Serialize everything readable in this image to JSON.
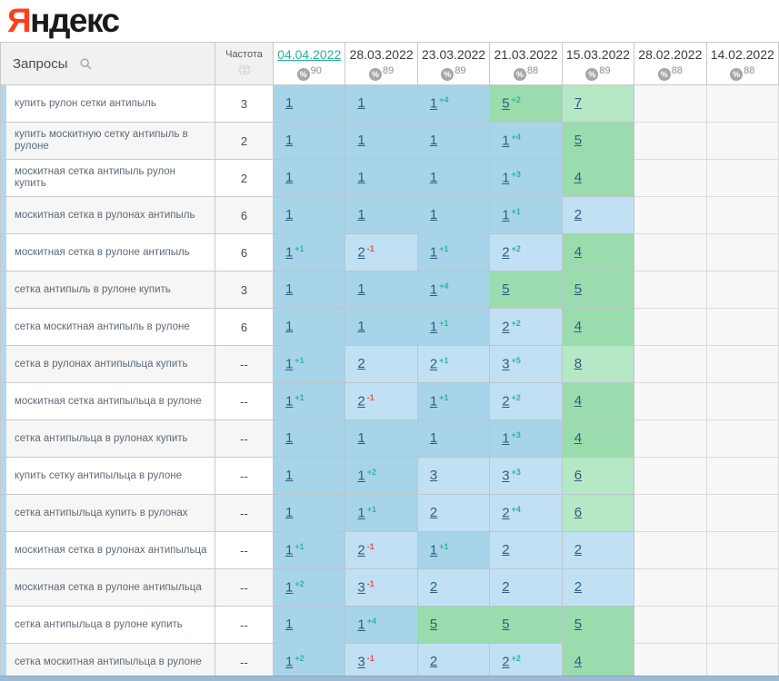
{
  "logo": {
    "first": "Я",
    "rest": "ндекс"
  },
  "header": {
    "queries_label": "Запросы",
    "frequency_label": "Частота",
    "search_icon": "magnifier",
    "frequency_icon": "globe",
    "coverage_icon": "percent-circle"
  },
  "colors": {
    "accent_selected_date": "#27b1a0",
    "delta_up": "#2ab5a0",
    "delta_down": "#e0544a",
    "pos_1_bg": "#a8d4ea",
    "pos_2_3_bg": "#c1e0f3",
    "pos_4_5_bg": "#9adcad",
    "pos_6_10_bg": "#b5e8c4",
    "row_strip": "#b3d7ee",
    "yandex_red": "#fc3f1d"
  },
  "table": {
    "date_columns": [
      {
        "date": "04.04.2022",
        "coverage": "90",
        "selected": true
      },
      {
        "date": "28.03.2022",
        "coverage": "89",
        "selected": false
      },
      {
        "date": "23.03.2022",
        "coverage": "89",
        "selected": false
      },
      {
        "date": "21.03.2022",
        "coverage": "88",
        "selected": false
      },
      {
        "date": "15.03.2022",
        "coverage": "89",
        "selected": false
      },
      {
        "date": "28.02.2022",
        "coverage": "88",
        "selected": false
      },
      {
        "date": "14.02.2022",
        "coverage": "88",
        "selected": false
      }
    ],
    "rows": [
      {
        "query": "купить рулон сетки антипыль",
        "frequency": "3",
        "positions": [
          {
            "pos": 1
          },
          {
            "pos": 1
          },
          {
            "pos": 1,
            "delta": 4
          },
          {
            "pos": 5,
            "delta": 2
          },
          {
            "pos": 7
          },
          null,
          null
        ]
      },
      {
        "query": "купить москитную сетку антипыль в рулоне",
        "frequency": "2",
        "positions": [
          {
            "pos": 1
          },
          {
            "pos": 1
          },
          {
            "pos": 1
          },
          {
            "pos": 1,
            "delta": 4
          },
          {
            "pos": 5
          },
          null,
          null
        ]
      },
      {
        "query": "москитная сетка антипыль рулон купить",
        "frequency": "2",
        "positions": [
          {
            "pos": 1
          },
          {
            "pos": 1
          },
          {
            "pos": 1
          },
          {
            "pos": 1,
            "delta": 3
          },
          {
            "pos": 4
          },
          null,
          null
        ]
      },
      {
        "query": "москитная сетка в рулонах антипыль",
        "frequency": "6",
        "positions": [
          {
            "pos": 1
          },
          {
            "pos": 1
          },
          {
            "pos": 1
          },
          {
            "pos": 1,
            "delta": 1
          },
          {
            "pos": 2
          },
          null,
          null
        ]
      },
      {
        "query": "москитная сетка в рулоне антипыль",
        "frequency": "6",
        "positions": [
          {
            "pos": 1,
            "delta": 1
          },
          {
            "pos": 2,
            "delta": -1
          },
          {
            "pos": 1,
            "delta": 1
          },
          {
            "pos": 2,
            "delta": 2
          },
          {
            "pos": 4
          },
          null,
          null
        ]
      },
      {
        "query": "сетка антипыль в рулоне купить",
        "frequency": "3",
        "positions": [
          {
            "pos": 1
          },
          {
            "pos": 1
          },
          {
            "pos": 1,
            "delta": 4
          },
          {
            "pos": 5
          },
          {
            "pos": 5
          },
          null,
          null
        ]
      },
      {
        "query": "сетка москитная антипыль в рулоне",
        "frequency": "6",
        "positions": [
          {
            "pos": 1
          },
          {
            "pos": 1
          },
          {
            "pos": 1,
            "delta": 1
          },
          {
            "pos": 2,
            "delta": 2
          },
          {
            "pos": 4
          },
          null,
          null
        ]
      },
      {
        "query": "сетка в рулонах антипыльца купить",
        "frequency": "--",
        "positions": [
          {
            "pos": 1,
            "delta": 1
          },
          {
            "pos": 2
          },
          {
            "pos": 2,
            "delta": 1
          },
          {
            "pos": 3,
            "delta": 5
          },
          {
            "pos": 8
          },
          null,
          null
        ]
      },
      {
        "query": "москитная сетка антипыльца в рулоне",
        "frequency": "--",
        "positions": [
          {
            "pos": 1,
            "delta": 1
          },
          {
            "pos": 2,
            "delta": -1
          },
          {
            "pos": 1,
            "delta": 1
          },
          {
            "pos": 2,
            "delta": 2
          },
          {
            "pos": 4
          },
          null,
          null
        ]
      },
      {
        "query": "сетка антипыльца в рулонах купить",
        "frequency": "--",
        "positions": [
          {
            "pos": 1
          },
          {
            "pos": 1
          },
          {
            "pos": 1
          },
          {
            "pos": 1,
            "delta": 3
          },
          {
            "pos": 4
          },
          null,
          null
        ]
      },
      {
        "query": "купить сетку антипыльца в рулоне",
        "frequency": "--",
        "positions": [
          {
            "pos": 1
          },
          {
            "pos": 1,
            "delta": 2
          },
          {
            "pos": 3
          },
          {
            "pos": 3,
            "delta": 3
          },
          {
            "pos": 6
          },
          null,
          null
        ]
      },
      {
        "query": "сетка антипыльца купить в рулонах",
        "frequency": "--",
        "positions": [
          {
            "pos": 1
          },
          {
            "pos": 1,
            "delta": 1
          },
          {
            "pos": 2
          },
          {
            "pos": 2,
            "delta": 4
          },
          {
            "pos": 6
          },
          null,
          null
        ]
      },
      {
        "query": "москитная сетка в рулонах антипыльца",
        "frequency": "--",
        "positions": [
          {
            "pos": 1,
            "delta": 1
          },
          {
            "pos": 2,
            "delta": -1
          },
          {
            "pos": 1,
            "delta": 1
          },
          {
            "pos": 2
          },
          {
            "pos": 2
          },
          null,
          null
        ]
      },
      {
        "query": "москитная сетка в рулоне антипыльца",
        "frequency": "--",
        "positions": [
          {
            "pos": 1,
            "delta": 2
          },
          {
            "pos": 3,
            "delta": -1
          },
          {
            "pos": 2
          },
          {
            "pos": 2
          },
          {
            "pos": 2
          },
          null,
          null
        ]
      },
      {
        "query": "сетка антипыльца в рулоне купить",
        "frequency": "--",
        "positions": [
          {
            "pos": 1
          },
          {
            "pos": 1,
            "delta": 4
          },
          {
            "pos": 5
          },
          {
            "pos": 5
          },
          {
            "pos": 5
          },
          null,
          null
        ]
      },
      {
        "query": "сетка москитная антипыльца в рулоне",
        "frequency": "--",
        "positions": [
          {
            "pos": 1,
            "delta": 2
          },
          {
            "pos": 3,
            "delta": -1
          },
          {
            "pos": 2
          },
          {
            "pos": 2,
            "delta": 2
          },
          {
            "pos": 4
          },
          null,
          null
        ]
      }
    ]
  }
}
